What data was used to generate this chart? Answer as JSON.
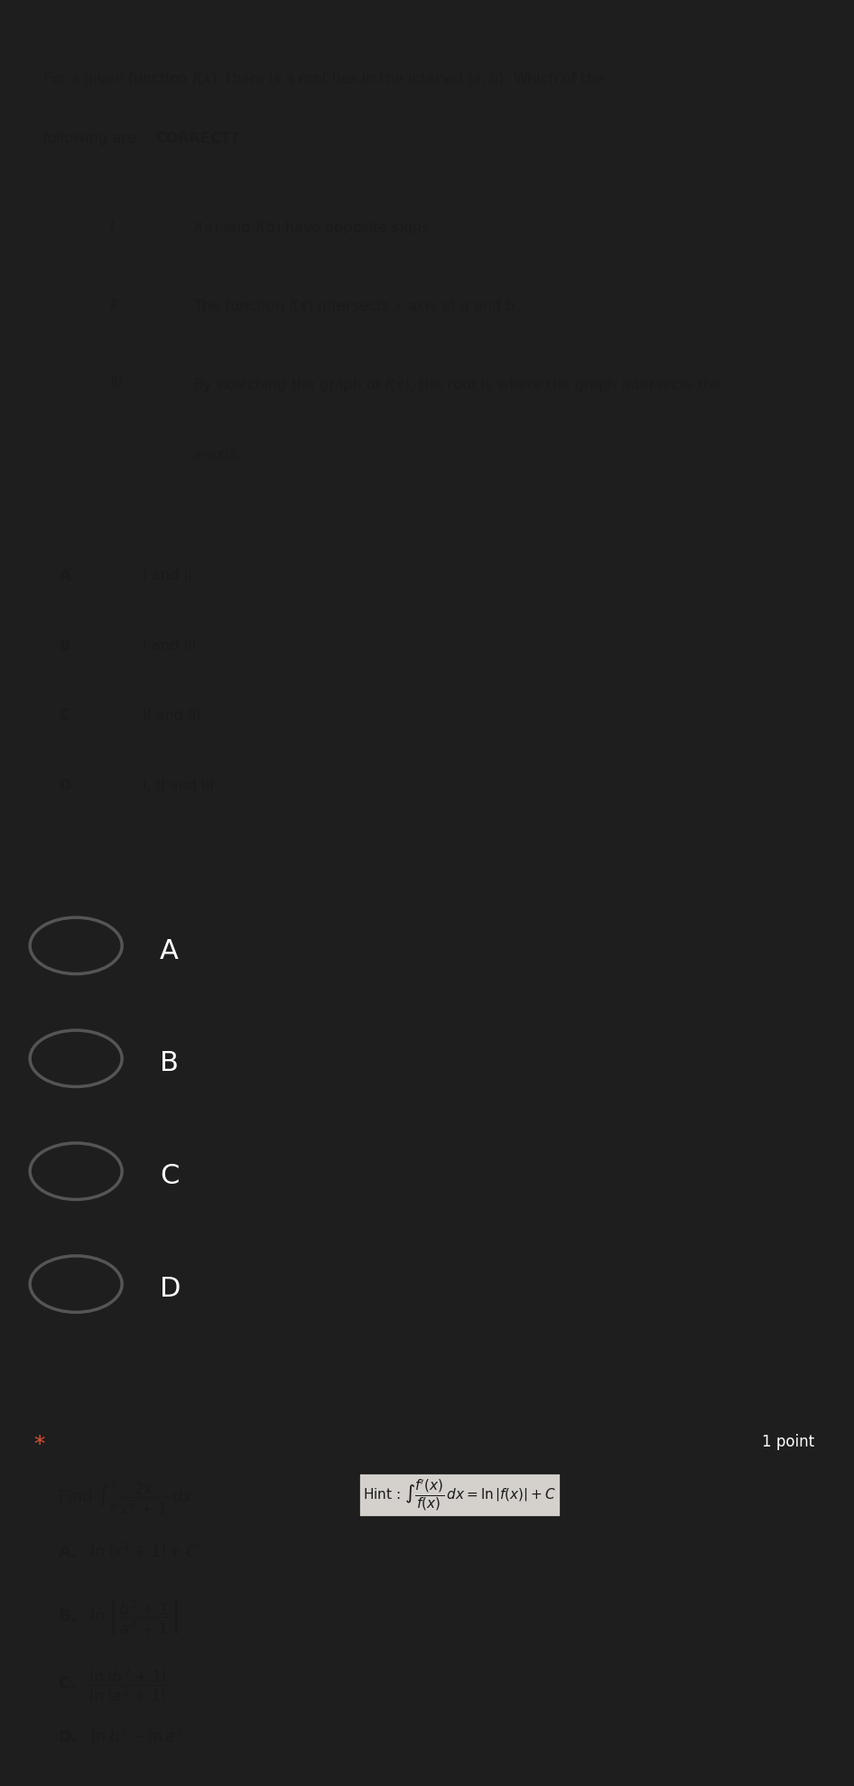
{
  "bg_dark": "#1e1e1e",
  "bg_light": "#d4d0cb",
  "bg_section2": "#2a2a3a",
  "text_light": "#ffffff",
  "text_dark": "#1a1a1a",
  "text_option": "#e8e8e8",
  "circle_color": "#555555",
  "star_color": "#e05030",
  "q1_title": "For a given function $f(x)$, there is a root lies in the interval $(a,b)$. Which of the\nfollowing are ",
  "q1_title_bold": "CORRECT?",
  "roman_I": "I",
  "roman_II": "II",
  "roman_III": "III",
  "stmt_I": "$f(a)$ and $f(b)$ have opposite signs.",
  "stmt_II": "The function $f(x)$ intersects $x$-axis at $a$ and $b$.",
  "stmt_III_1": "By sketching the graph of $f(x)$, the root is where the graph intersects the",
  "stmt_III_2": "$x$-axis.",
  "opt_A_label": "A",
  "opt_B_label": "B",
  "opt_C_label": "C",
  "opt_D_label": "D",
  "opt_A_text": "I and II",
  "opt_B_text": "I and III",
  "opt_C_text": "II and III",
  "opt_D_text": "I, II and III",
  "radio_A": "A",
  "radio_B": "B",
  "radio_C": "C",
  "radio_D": "D",
  "one_point": "1 point",
  "find_text_pre": "Find $\\int_a^b \\dfrac{2x}{x^2+1}\\,dx$.",
  "hint_text": "Hint: $\\int \\dfrac{f^{\\prime}(x)}{f(x)}\\,dx = \\ln\\left|f(x)\\right| + C$",
  "ans_A": "$\\mathbf{A.}$  $\\ln\\left|x^2+1\\right|+C$",
  "ans_B_pre": "$\\mathbf{B.}$  $\\ln\\left|\\dfrac{b^2+1}{a^2+1}\\right|$",
  "ans_C_pre": "$\\mathbf{C.}$  $\\dfrac{\\ln\\left|b^2+1\\right|}{\\ln\\left|a^2+1\\right|}$",
  "ans_D": "$\\mathbf{D.}$  $\\ln b^2 - \\ln a^2$"
}
